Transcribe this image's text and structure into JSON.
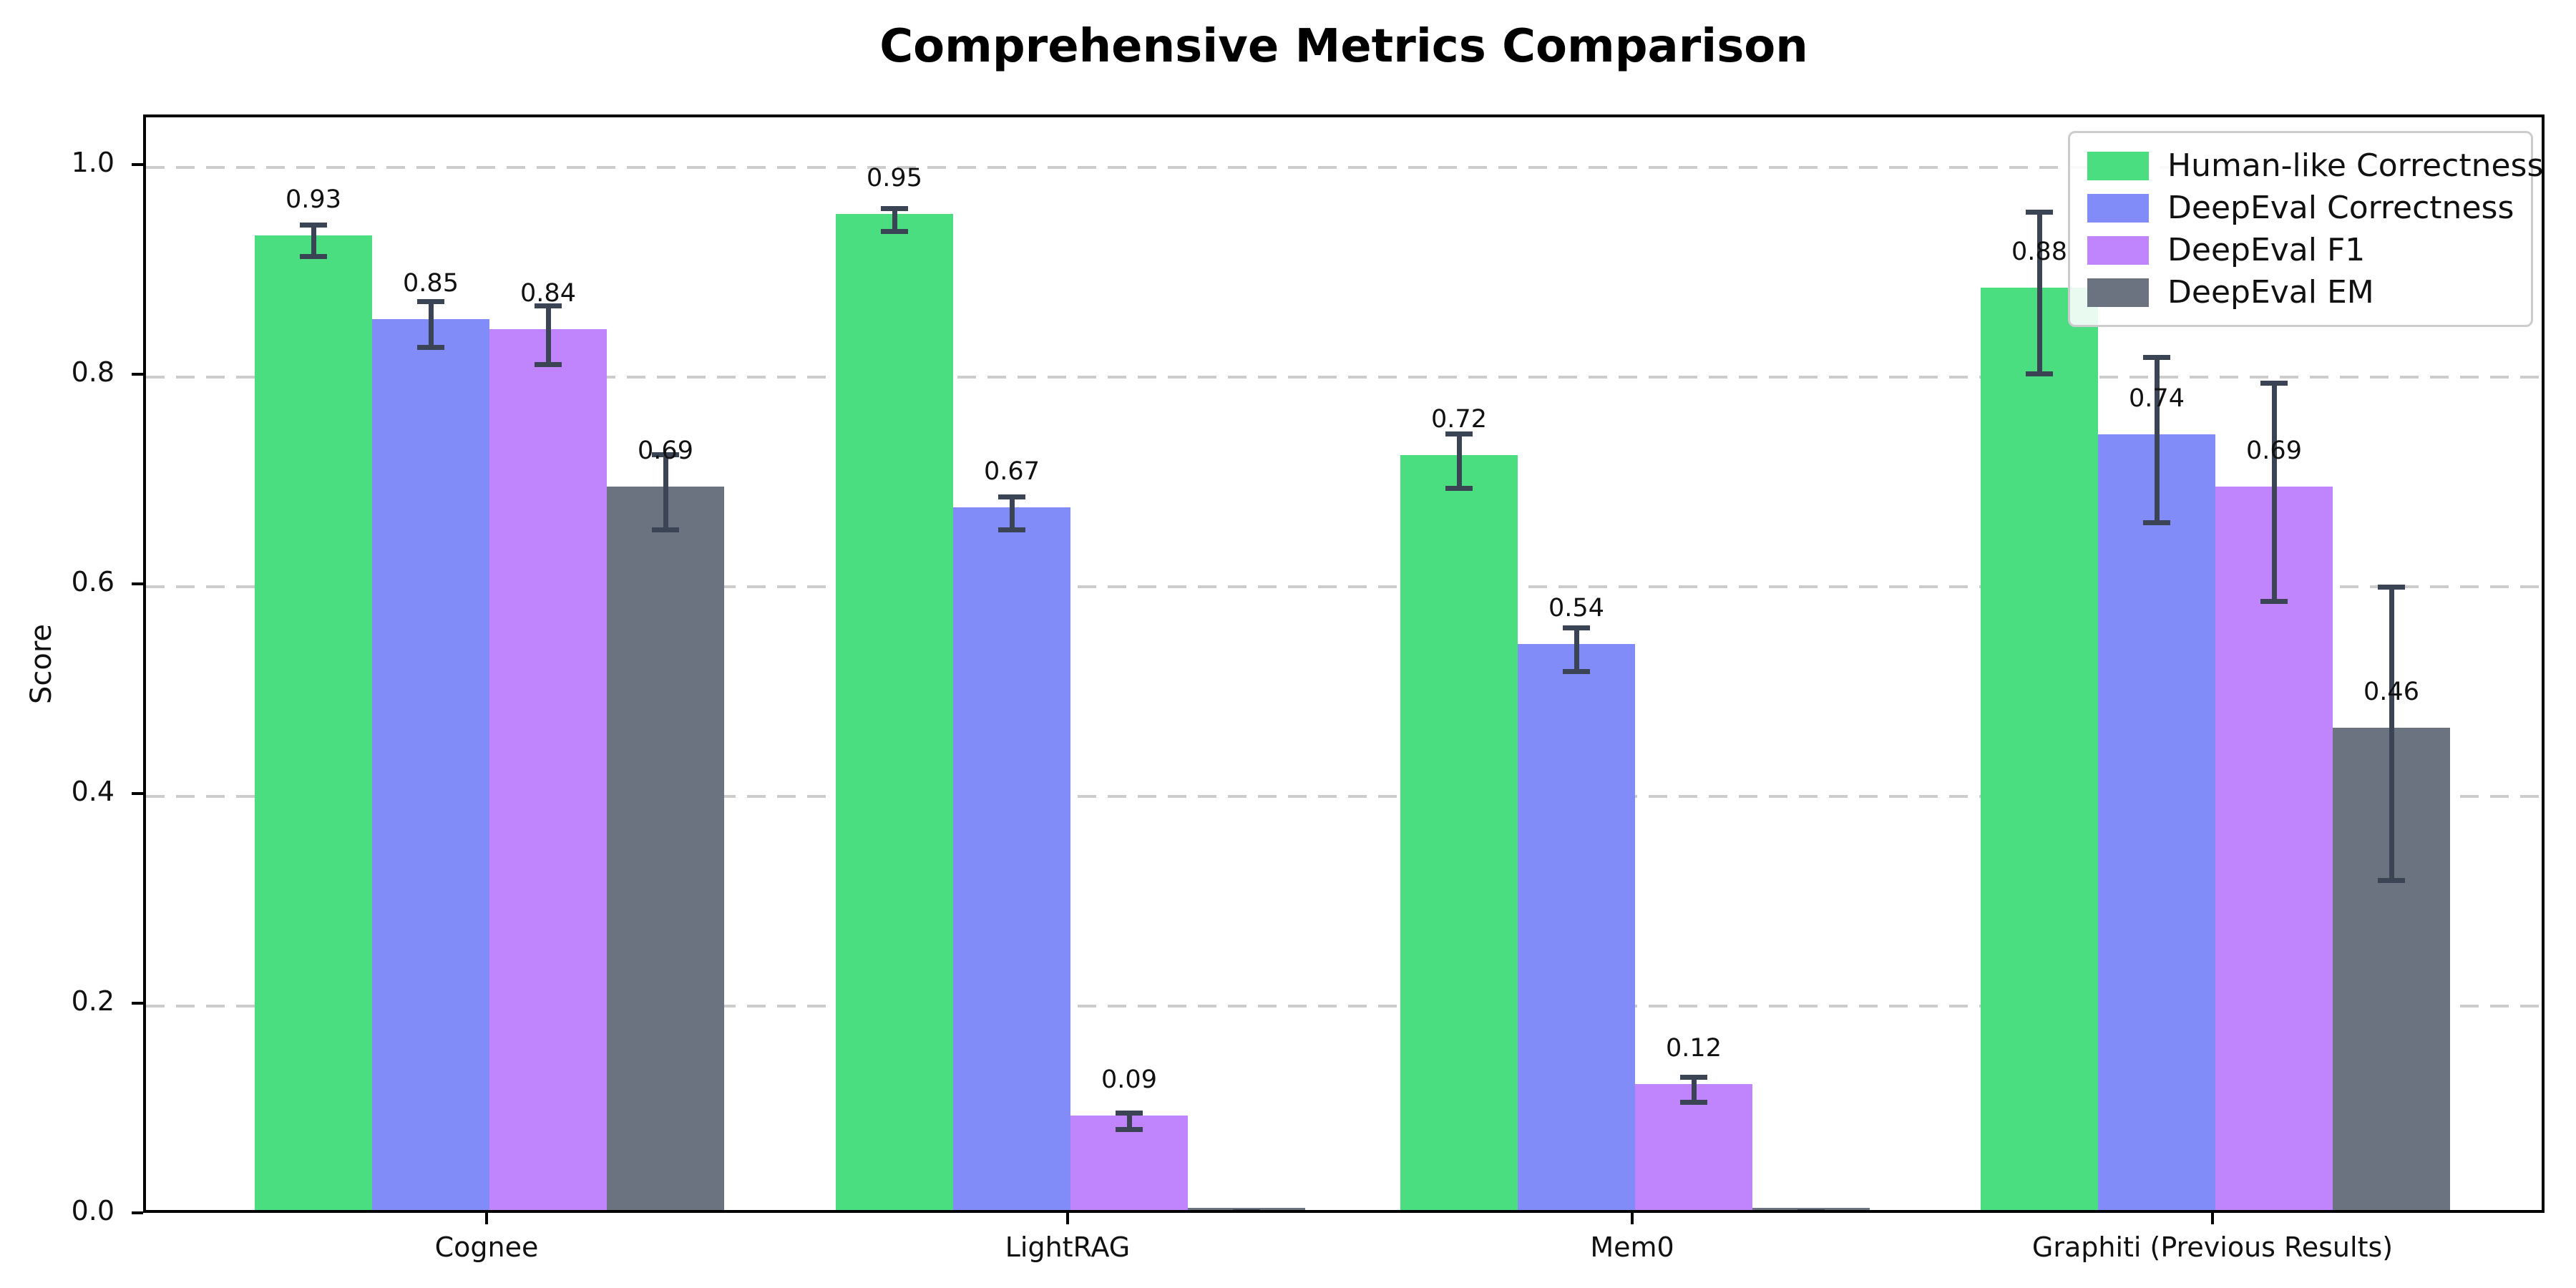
{
  "title": "Comprehensive Metrics Comparison",
  "ylabel": "Score",
  "colors": {
    "human_like": "#4ade80",
    "deepeval_correctness": "#818cf8",
    "deepeval_f1": "#c084fc",
    "deepeval_em": "#6b7280",
    "error_bar": "#3a4454",
    "gridline": "#cccccc",
    "axis": "#000000"
  },
  "chart_data": {
    "type": "bar",
    "title": "Comprehensive Metrics Comparison",
    "xlabel": "",
    "ylabel": "Score",
    "categories": [
      "Cognee",
      "LightRAG",
      "Mem0",
      "Graphiti (Previous Results)"
    ],
    "series": [
      {
        "name": "Human-like Correctness",
        "color": "#4ade80",
        "values": [
          0.93,
          0.95,
          0.72,
          0.88
        ],
        "errors": [
          0.015,
          0.011,
          0.026,
          0.077
        ],
        "value_labels": [
          "0.93",
          "0.95",
          "0.72",
          "0.88"
        ]
      },
      {
        "name": "DeepEval Correctness",
        "color": "#818cf8",
        "values": [
          0.85,
          0.67,
          0.54,
          0.74
        ],
        "errors": [
          0.022,
          0.016,
          0.021,
          0.079
        ],
        "value_labels": [
          "0.85",
          "0.67",
          "0.54",
          "0.74"
        ]
      },
      {
        "name": "DeepEval F1",
        "color": "#c084fc",
        "values": [
          0.84,
          0.09,
          0.12,
          0.69
        ],
        "errors": [
          0.028,
          0.008,
          0.012,
          0.104
        ],
        "value_labels": [
          "0.84",
          "0.09",
          "0.12",
          "0.69"
        ]
      },
      {
        "name": "DeepEval EM",
        "color": "#6b7280",
        "values": [
          0.69,
          0.0,
          0.0,
          0.46
        ],
        "errors": [
          0.036,
          0.004,
          0.004,
          0.14
        ],
        "value_labels": [
          "0.69",
          "",
          "",
          "0.46"
        ]
      }
    ],
    "yticks": [
      "0.0",
      "0.2",
      "0.4",
      "0.6",
      "0.8",
      "1.0"
    ],
    "ylim": [
      0,
      1.048
    ],
    "grid": "horizontal dashed",
    "legend_position": "upper right"
  }
}
